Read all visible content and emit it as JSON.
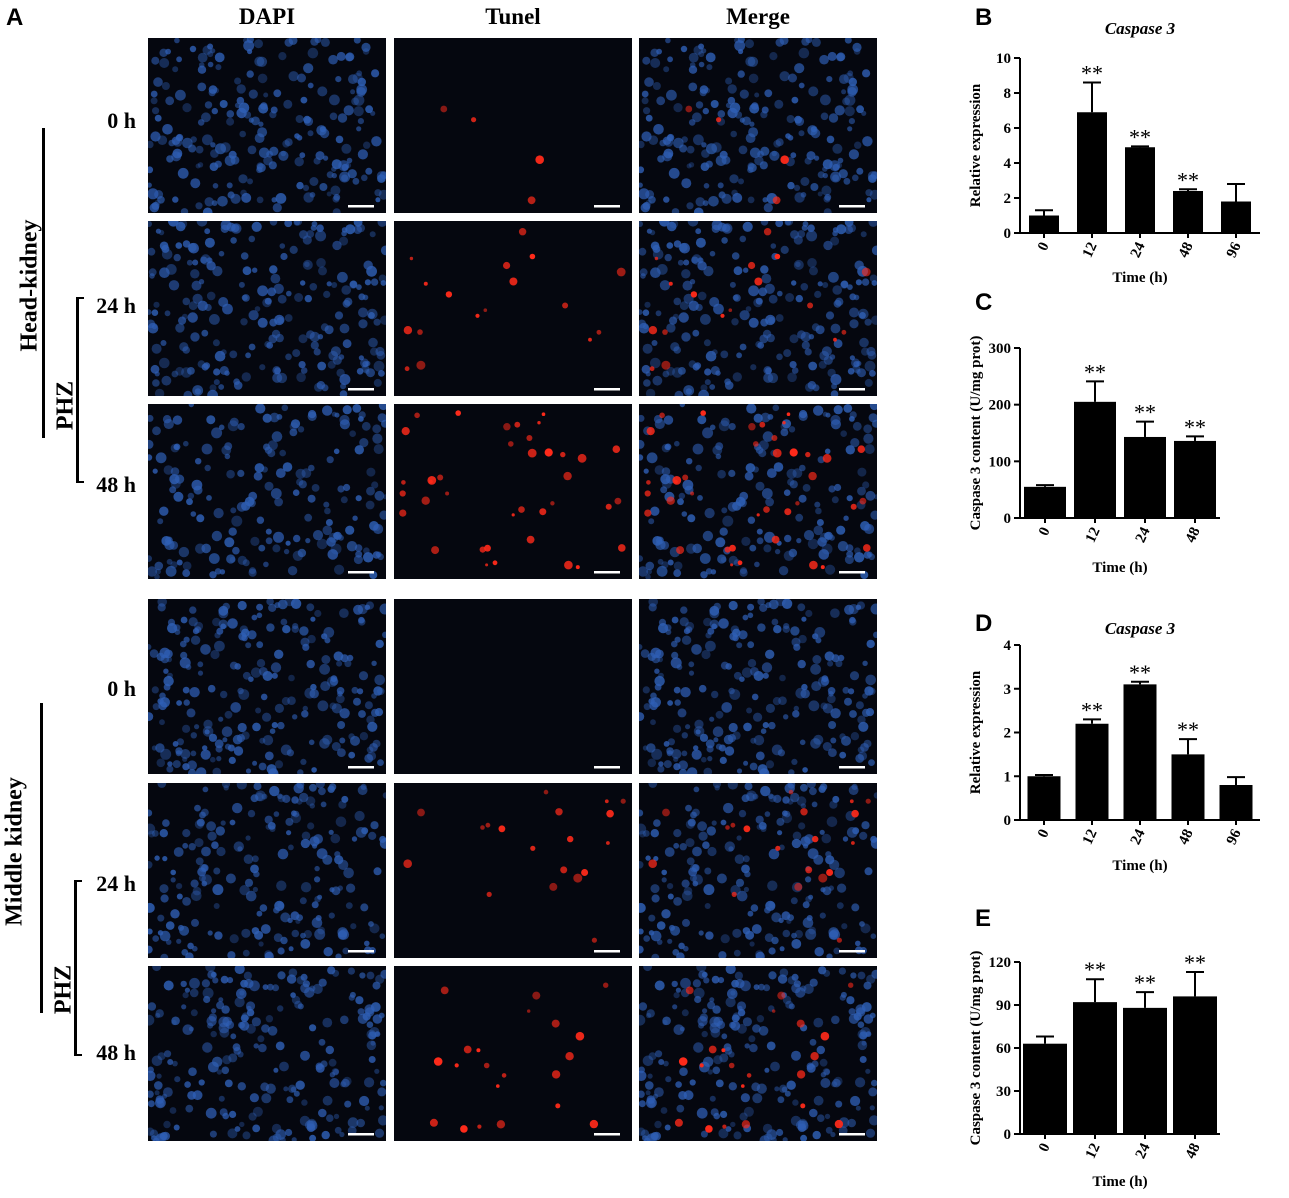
{
  "figure": {
    "panel_A": {
      "letter": "A",
      "columns": [
        "DAPI",
        "Tunel",
        "Merge"
      ],
      "groups": [
        {
          "tissue": "Head-kidney",
          "treatment": "PHZ",
          "rows": [
            {
              "time": "0 h",
              "tunel_level": 0.1
            },
            {
              "time": "24 h",
              "tunel_level": 0.45
            },
            {
              "time": "48 h",
              "tunel_level": 1.0
            }
          ]
        },
        {
          "tissue": "Middle kidney",
          "treatment": "PHZ",
          "rows": [
            {
              "time": "0 h",
              "tunel_level": 0.0
            },
            {
              "time": "24 h",
              "tunel_level": 0.5
            },
            {
              "time": "48 h",
              "tunel_level": 0.55
            }
          ]
        }
      ],
      "colors": {
        "dapi": "#2f5fb5",
        "tunel": "#ff2a1a",
        "background": "#05070f"
      }
    }
  },
  "chart_data": [
    {
      "panel": "B",
      "type": "bar",
      "title": "Caspase 3",
      "xlabel": "Time (h)",
      "ylabel": "Relative expression",
      "categories": [
        "0",
        "12",
        "24",
        "48",
        "96"
      ],
      "values": [
        1.0,
        6.9,
        4.9,
        2.4,
        1.8
      ],
      "errors": [
        0.3,
        1.7,
        0.05,
        0.1,
        1.0
      ],
      "significance": [
        "",
        "**",
        "**",
        "**",
        ""
      ],
      "ylim": [
        0,
        10
      ],
      "yticks": [
        0,
        2,
        4,
        6,
        8,
        10
      ]
    },
    {
      "panel": "C",
      "type": "bar",
      "title": "",
      "xlabel": "Time (h)",
      "ylabel": "Caspase 3 content (U/mg prot)",
      "categories": [
        "0",
        "12",
        "24",
        "48"
      ],
      "values": [
        55,
        205,
        143,
        136
      ],
      "errors": [
        3,
        36,
        27,
        8
      ],
      "significance": [
        "",
        "**",
        "**",
        "**"
      ],
      "ylim": [
        0,
        300
      ],
      "yticks": [
        0,
        100,
        200,
        300
      ]
    },
    {
      "panel": "D",
      "type": "bar",
      "title": "Caspase 3",
      "xlabel": "Time (h)",
      "ylabel": "Relative expression",
      "categories": [
        "0",
        "12",
        "24",
        "48",
        "96"
      ],
      "values": [
        1.0,
        2.2,
        3.1,
        1.5,
        0.8
      ],
      "errors": [
        0.03,
        0.1,
        0.06,
        0.35,
        0.18
      ],
      "significance": [
        "",
        "**",
        "**",
        "**",
        ""
      ],
      "ylim": [
        0,
        4
      ],
      "yticks": [
        0,
        1,
        2,
        3,
        4
      ]
    },
    {
      "panel": "E",
      "type": "bar",
      "title": "",
      "xlabel": "Time (h)",
      "ylabel": "Caspase 3 content (U/mg prot)",
      "categories": [
        "0",
        "12",
        "24",
        "48"
      ],
      "values": [
        63,
        92,
        88,
        96
      ],
      "errors": [
        5,
        16,
        11,
        17
      ],
      "significance": [
        "",
        "**",
        "**",
        "**"
      ],
      "ylim": [
        0,
        120
      ],
      "yticks": [
        0,
        30,
        60,
        90,
        120
      ]
    }
  ]
}
